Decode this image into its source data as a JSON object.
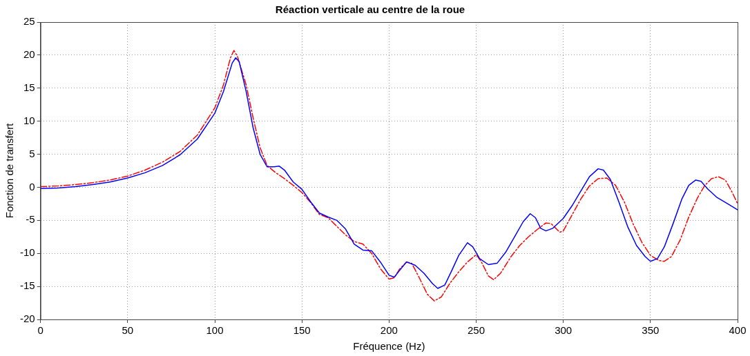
{
  "chart_data": {
    "type": "line",
    "title": "Réaction verticale au centre de la roue",
    "xlabel": "Fréquence (Hz)",
    "ylabel": "Fonction de transfert",
    "xlim": [
      0,
      400
    ],
    "xticks": [
      0,
      50,
      100,
      150,
      200,
      250,
      300,
      350,
      400
    ],
    "ylim": [
      -20,
      25
    ],
    "yticks": [
      -20,
      -15,
      -10,
      -5,
      0,
      5,
      10,
      15,
      20,
      25
    ],
    "grid": true,
    "legend": false,
    "marker": "none",
    "series": [
      {
        "color": "#0000ff",
        "line_style": "solid",
        "x": [
          0,
          10,
          20,
          30,
          40,
          50,
          60,
          70,
          80,
          90,
          100,
          105,
          110,
          112,
          114,
          118,
          122,
          126,
          130,
          134,
          137,
          140,
          145,
          150,
          155,
          160,
          165,
          170,
          175,
          180,
          185,
          190,
          195,
          200,
          203,
          206,
          210,
          215,
          220,
          225,
          228,
          232,
          236,
          240,
          245,
          248,
          252,
          257,
          262,
          267,
          272,
          277,
          281,
          284,
          287,
          290,
          294,
          300,
          305,
          310,
          315,
          320,
          323,
          327,
          332,
          337,
          342,
          347,
          350,
          354,
          358,
          363,
          368,
          372,
          376,
          379,
          383,
          388,
          395,
          400
        ],
        "values": [
          -0.2,
          -0.1,
          0.1,
          0.4,
          0.8,
          1.4,
          2.2,
          3.3,
          4.9,
          7.3,
          11.2,
          14.5,
          18.8,
          19.6,
          19,
          14.5,
          9,
          5,
          3.1,
          3.1,
          3.2,
          2.6,
          0.8,
          -0.3,
          -2.2,
          -3.9,
          -4.5,
          -5,
          -6.3,
          -8.6,
          -9.5,
          -9.6,
          -11.3,
          -13.3,
          -13.6,
          -12.6,
          -11.3,
          -11.8,
          -13,
          -14.6,
          -15.3,
          -14.8,
          -12.6,
          -10.3,
          -8.4,
          -9,
          -10.8,
          -11.7,
          -11.5,
          -9.8,
          -7.5,
          -5.2,
          -4,
          -4.6,
          -6.2,
          -6.6,
          -6.2,
          -4.7,
          -2.8,
          -0.6,
          1.6,
          2.8,
          2.6,
          1.2,
          -2.3,
          -6,
          -8.8,
          -10.5,
          -11.2,
          -10.8,
          -9,
          -5.5,
          -1.8,
          0.3,
          1.1,
          0.9,
          -0.3,
          -1.5,
          -2.6,
          -3.4
        ]
      },
      {
        "color": "#ff0000",
        "line_style": "dashed",
        "x": [
          0,
          10,
          20,
          30,
          40,
          50,
          60,
          70,
          80,
          90,
          100,
          105,
          109,
          111,
          113,
          118,
          122,
          126,
          130,
          135,
          140,
          145,
          150,
          155,
          160,
          165,
          170,
          175,
          180,
          185,
          190,
          195,
          200,
          203,
          206,
          210,
          213,
          217,
          222,
          226,
          230,
          235,
          240,
          245,
          250,
          253,
          257,
          260,
          264,
          270,
          275,
          280,
          285,
          290,
          293,
          298,
          300,
          305,
          310,
          315,
          320,
          325,
          330,
          335,
          340,
          345,
          350,
          355,
          358,
          362,
          367,
          372,
          377,
          381,
          385,
          389,
          393,
          397,
          400
        ],
        "values": [
          0.1,
          0.2,
          0.4,
          0.7,
          1.1,
          1.7,
          2.6,
          3.8,
          5.4,
          7.9,
          12,
          15.5,
          19.6,
          20.7,
          19.8,
          15.5,
          10.5,
          6,
          3.3,
          2.2,
          1.3,
          0.3,
          -0.8,
          -2.3,
          -4.1,
          -4.6,
          -5.9,
          -7.2,
          -8.2,
          -8.6,
          -10,
          -12.3,
          -13.9,
          -13.7,
          -12.4,
          -11.3,
          -11.5,
          -13.5,
          -16.2,
          -17.2,
          -16.6,
          -14.5,
          -12.8,
          -11.3,
          -10.2,
          -11.3,
          -13.4,
          -14,
          -13,
          -10.5,
          -8.8,
          -7.5,
          -6.4,
          -5.4,
          -5.5,
          -6.8,
          -6.6,
          -4.2,
          -1.8,
          0.2,
          1.3,
          1.4,
          0.3,
          -2.2,
          -5.5,
          -8.3,
          -10.3,
          -11.1,
          -11.2,
          -10.5,
          -8,
          -4.5,
          -1.6,
          0.2,
          1.3,
          1.6,
          1.1,
          -0.8,
          -2.5
        ]
      }
    ]
  }
}
